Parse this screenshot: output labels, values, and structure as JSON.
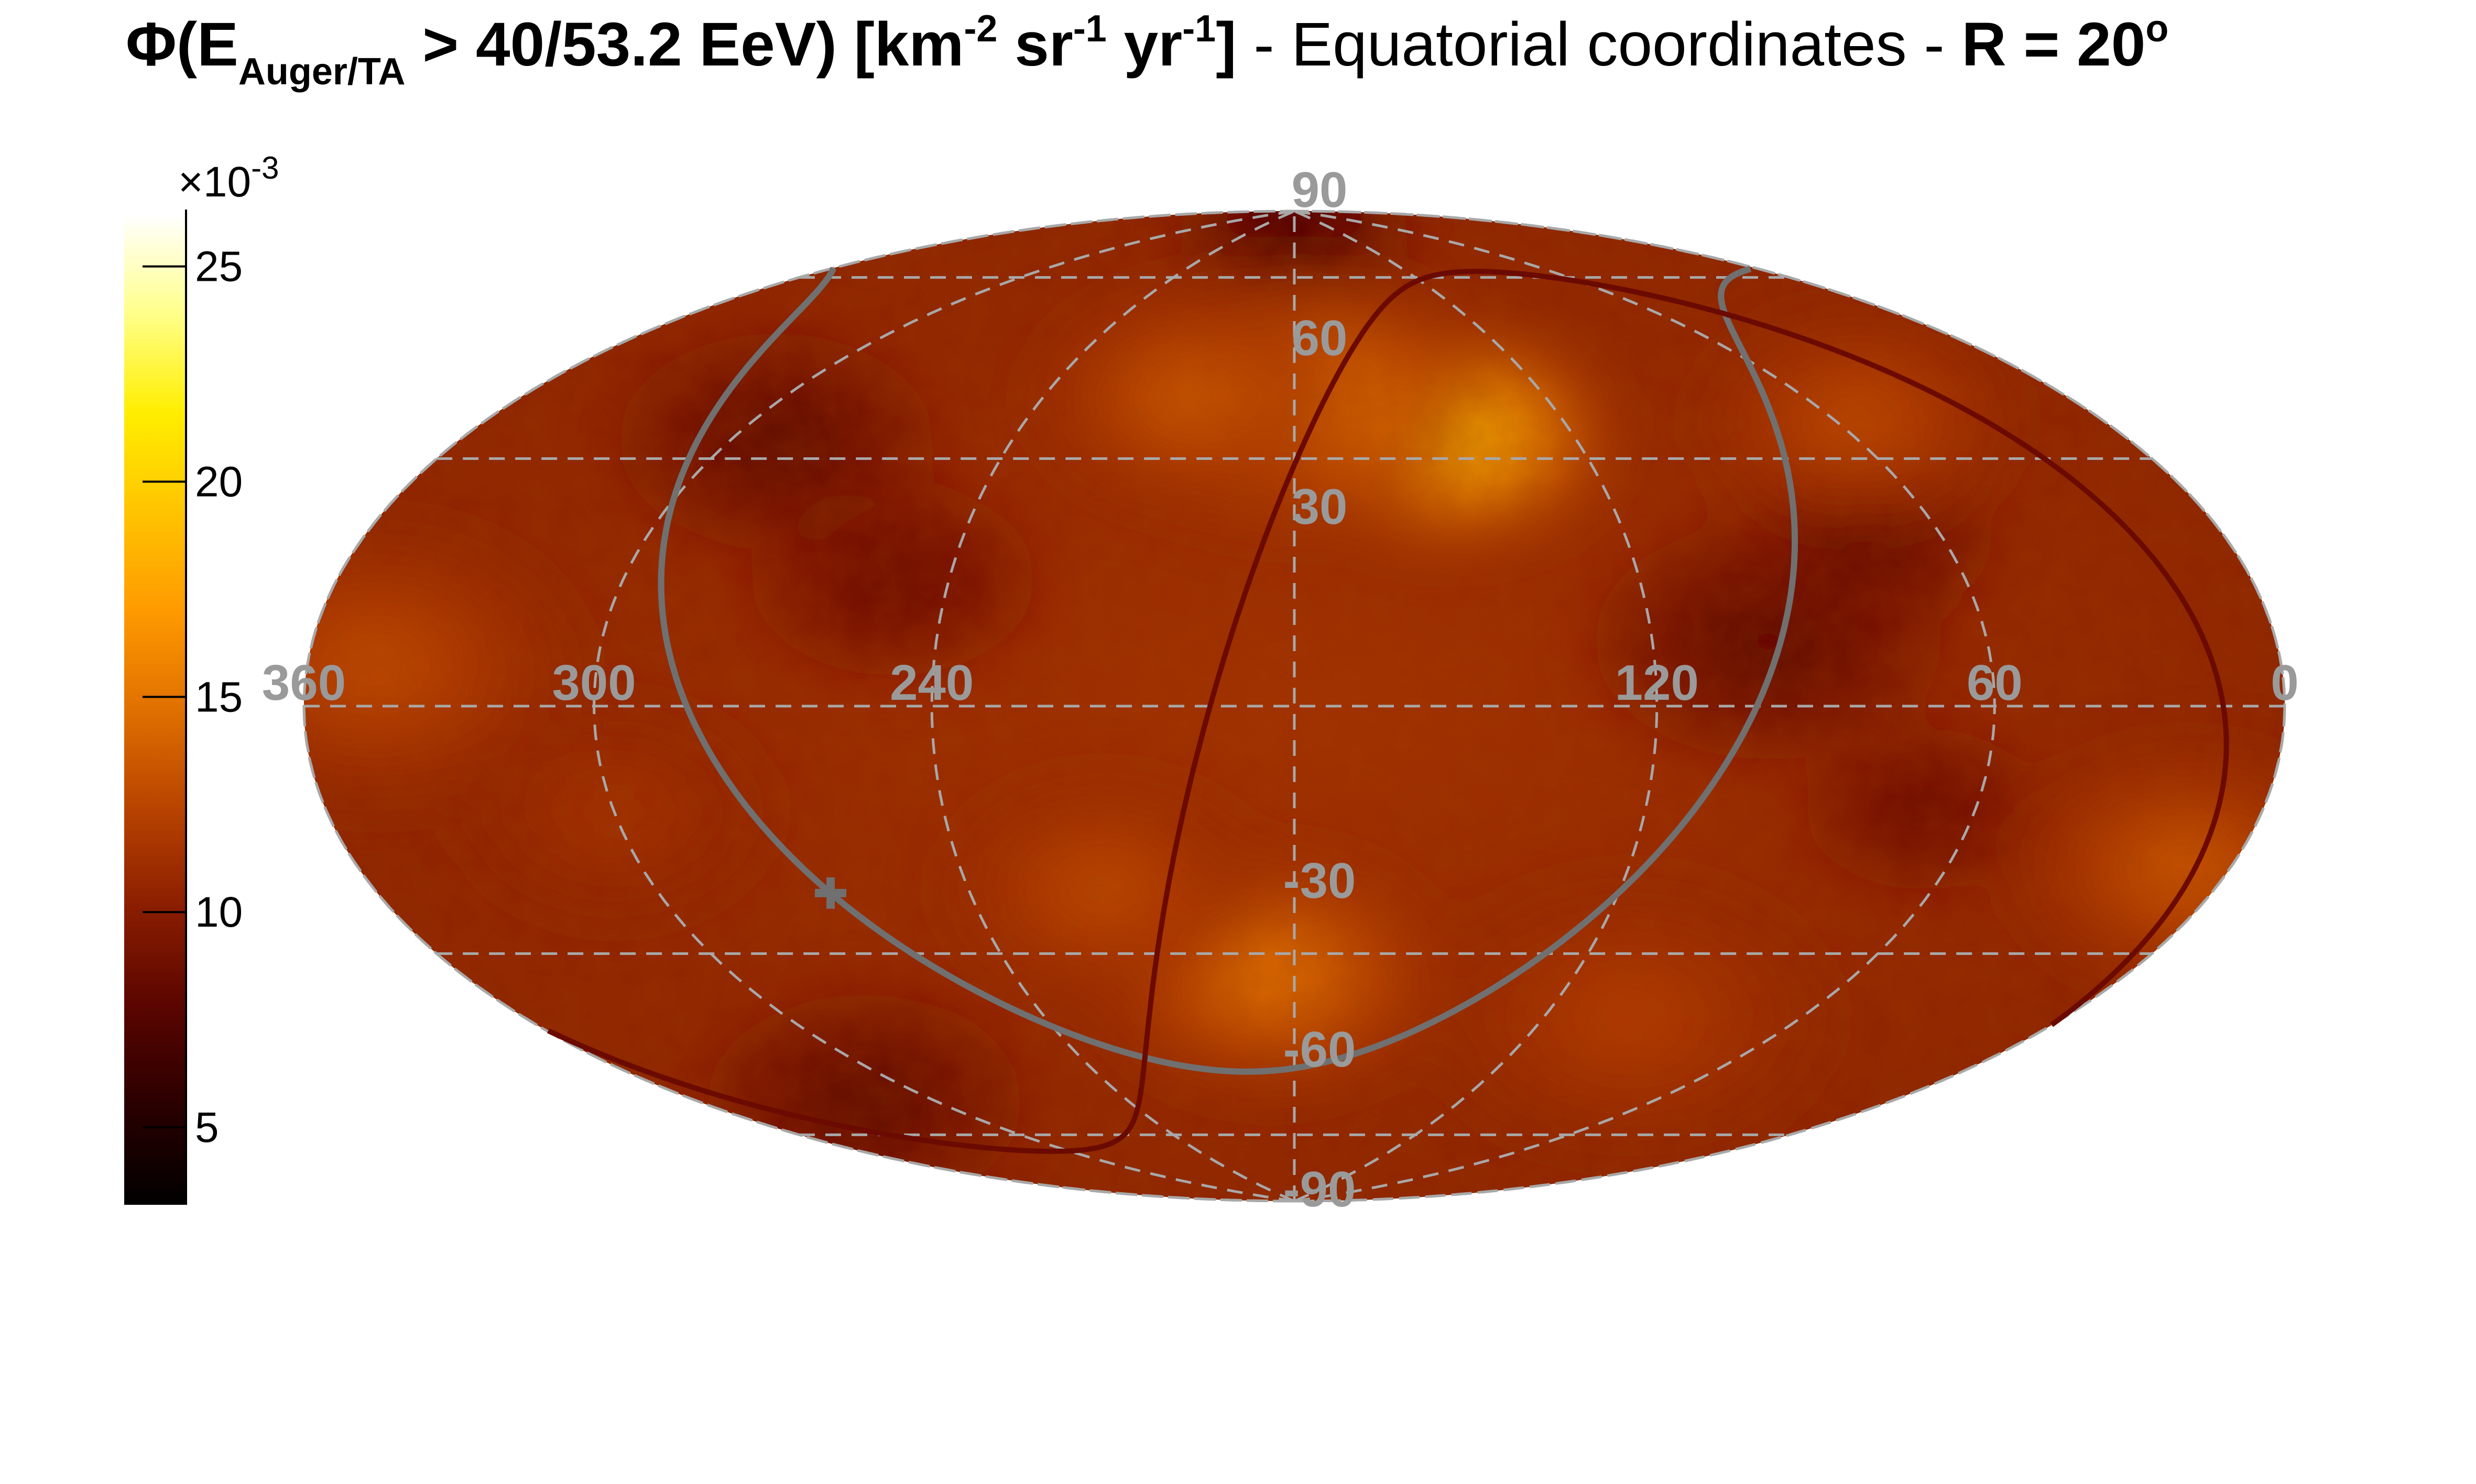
{
  "title": {
    "phi": "Φ",
    "open": "(E",
    "subscript": "Auger/TA",
    "threshold": " > 40/53.2 EeV)",
    "units_open": "  [km",
    "km_exp": "-2",
    "sr": " sr",
    "sr_exp": "-1",
    "yr": " yr",
    "yr_exp": "-1",
    "units_close": "]",
    "coords": " - Equatorial coordinates - ",
    "radius": "R = 20",
    "radius_unit": "o"
  },
  "colorbar": {
    "multiplier_prefix": "×10",
    "multiplier_exp": "-3",
    "range": [
      3.2,
      26.2
    ],
    "ticks": [
      {
        "value": 5,
        "label": "5"
      },
      {
        "value": 10,
        "label": "10"
      },
      {
        "value": 15,
        "label": "15"
      },
      {
        "value": 20,
        "label": "20"
      },
      {
        "value": 25,
        "label": "25"
      }
    ],
    "colors": [
      "#000000",
      "#2a0000",
      "#5a0500",
      "#8a1d00",
      "#b84300",
      "#e07000",
      "#ff9a00",
      "#ffc400",
      "#ffee00",
      "#ffff8a",
      "#ffffff"
    ]
  },
  "map": {
    "projection": "Hammer-Aitoff",
    "coordinate_system": "Equatorial",
    "ra_labels": [
      {
        "ra": 360,
        "label": "360"
      },
      {
        "ra": 300,
        "label": "300"
      },
      {
        "ra": 240,
        "label": "240"
      },
      {
        "ra": 120,
        "label": "120"
      },
      {
        "ra": 60,
        "label": "60"
      },
      {
        "ra": 0,
        "label": "0"
      }
    ],
    "dec_labels": [
      {
        "dec": 90,
        "label": "90"
      },
      {
        "dec": 60,
        "label": "60"
      },
      {
        "dec": 30,
        "label": "30"
      },
      {
        "dec": -30,
        "label": "-30"
      },
      {
        "dec": -60,
        "label": "-60"
      },
      {
        "dec": -90,
        "label": "-90"
      }
    ],
    "grid_ra": [
      360,
      300,
      240,
      180,
      120,
      60,
      0
    ],
    "grid_dec": [
      60,
      30,
      0,
      -30,
      -60
    ],
    "grid_color": "#a8a8a8",
    "label_color": "#9a9a9a",
    "galactic_plane_color": "#707070",
    "supergalactic_plane_color": "#6b0a00",
    "galactic_center_marker": {
      "ra": 266.4,
      "dec": -28.9
    },
    "hotspots": [
      {
        "ra": 146,
        "dec": 45,
        "sigma": 20,
        "amp": 14
      },
      {
        "ra": 180,
        "dec": 52,
        "sigma": 24,
        "amp": 8
      },
      {
        "ra": 205,
        "dec": 52,
        "sigma": 20,
        "amp": 5
      },
      {
        "ra": 185,
        "dec": -45,
        "sigma": 22,
        "amp": 7
      },
      {
        "ra": 215,
        "dec": -30,
        "sigma": 20,
        "amp": 4
      },
      {
        "ra": 55,
        "dec": 42,
        "sigma": 20,
        "amp": 4
      },
      {
        "ra": 10,
        "dec": -20,
        "sigma": 22,
        "amp": 5
      },
      {
        "ra": 345,
        "dec": 5,
        "sigma": 26,
        "amp": 4
      },
      {
        "ra": 100,
        "dec": -50,
        "sigma": 25,
        "amp": 3
      },
      {
        "ra": 300,
        "dec": -15,
        "sigma": 20,
        "amp": 2
      }
    ],
    "coldspots": [
      {
        "ra": 180,
        "dec": 86,
        "sigma": 15,
        "amp": 5
      },
      {
        "ra": 290,
        "dec": 40,
        "sigma": 20,
        "amp": 3
      },
      {
        "ra": 100,
        "dec": 10,
        "sigma": 22,
        "amp": 3
      },
      {
        "ra": 75,
        "dec": 25,
        "sigma": 16,
        "amp": 3
      },
      {
        "ra": 320,
        "dec": -60,
        "sigma": 20,
        "amp": 3
      },
      {
        "ra": 70,
        "dec": -15,
        "sigma": 15,
        "amp": 2
      },
      {
        "ra": 250,
        "dec": 20,
        "sigma": 18,
        "amp": 2
      }
    ]
  }
}
